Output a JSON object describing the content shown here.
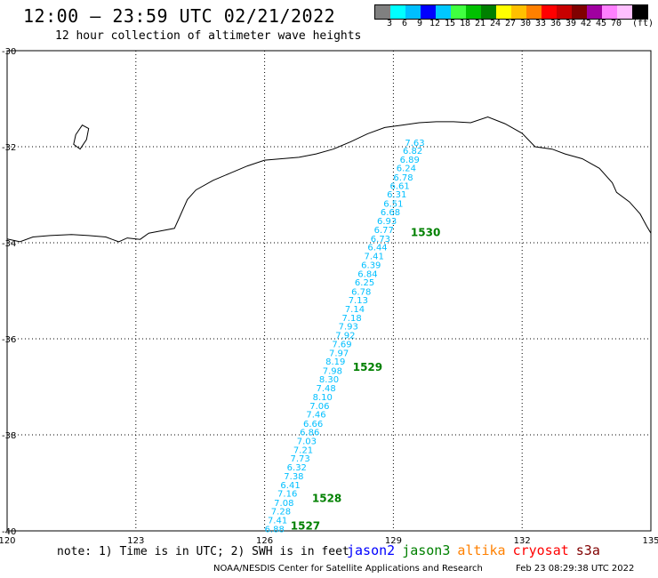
{
  "title": "12:00 – 23:59 UTC 02/21/2022",
  "subtitle": "12 hour collection of altimeter wave heights",
  "legend": {
    "colors": [
      "#808080",
      "#00ffff",
      "#00bfff",
      "#0000ff",
      "#00c8ff",
      "#40ff40",
      "#00c000",
      "#008000",
      "#ffff00",
      "#ffc000",
      "#ff8000",
      "#ff0000",
      "#c80000",
      "#800000",
      "#a000a0",
      "#ff80ff",
      "#ffc0ff",
      "#000000"
    ],
    "labels": [
      "3",
      "6",
      "9",
      "12",
      "15",
      "18",
      "21",
      "24",
      "27",
      "30",
      "33",
      "36",
      "39",
      "42",
      "45",
      "70"
    ],
    "unit": "(ft)"
  },
  "map": {
    "lon_ticks": [
      "120",
      "123",
      "126",
      "129",
      "132",
      "135"
    ],
    "lat_ticks": [
      "-30",
      "-32",
      "-34",
      "-36",
      "-38",
      "-40"
    ],
    "track_color": "#00bfff",
    "time_color": "#008000",
    "track_points": [
      {
        "lon": 129.5,
        "lat": -31.98,
        "v": "7.63"
      },
      {
        "lon": 129.45,
        "lat": -32.15,
        "v": "6.82"
      },
      {
        "lon": 129.38,
        "lat": -32.33,
        "v": "6.89"
      },
      {
        "lon": 129.3,
        "lat": -32.51,
        "v": "6.24"
      },
      {
        "lon": 129.23,
        "lat": -32.7,
        "v": "6.78"
      },
      {
        "lon": 129.15,
        "lat": -32.88,
        "v": "6.61"
      },
      {
        "lon": 129.08,
        "lat": -33.06,
        "v": "6.31"
      },
      {
        "lon": 129.0,
        "lat": -33.25,
        "v": "6.51"
      },
      {
        "lon": 128.93,
        "lat": -33.43,
        "v": "6.68"
      },
      {
        "lon": 128.85,
        "lat": -33.61,
        "v": "6.93"
      },
      {
        "lon": 128.78,
        "lat": -33.8,
        "v": "6.77"
      },
      {
        "lon": 128.7,
        "lat": -33.98,
        "v": "6.73"
      },
      {
        "lon": 128.63,
        "lat": -34.16,
        "v": "6.44"
      },
      {
        "lon": 128.55,
        "lat": -34.34,
        "v": "7.41"
      },
      {
        "lon": 128.48,
        "lat": -34.53,
        "v": "6.39"
      },
      {
        "lon": 128.4,
        "lat": -34.71,
        "v": "6.84"
      },
      {
        "lon": 128.33,
        "lat": -34.89,
        "v": "6.25"
      },
      {
        "lon": 128.25,
        "lat": -35.08,
        "v": "6.78"
      },
      {
        "lon": 128.18,
        "lat": -35.26,
        "v": "7.13"
      },
      {
        "lon": 128.1,
        "lat": -35.44,
        "v": "7.14"
      },
      {
        "lon": 128.03,
        "lat": -35.63,
        "v": "7.18"
      },
      {
        "lon": 127.95,
        "lat": -35.81,
        "v": "7.93"
      },
      {
        "lon": 127.88,
        "lat": -35.99,
        "v": "7.92"
      },
      {
        "lon": 127.8,
        "lat": -36.18,
        "v": "7.69"
      },
      {
        "lon": 127.73,
        "lat": -36.36,
        "v": "7.97"
      },
      {
        "lon": 127.65,
        "lat": -36.54,
        "v": "8.19"
      },
      {
        "lon": 127.58,
        "lat": -36.73,
        "v": "7.98"
      },
      {
        "lon": 127.5,
        "lat": -36.91,
        "v": "8.30"
      },
      {
        "lon": 127.43,
        "lat": -37.09,
        "v": "7.48"
      },
      {
        "lon": 127.35,
        "lat": -37.28,
        "v": "8.10"
      },
      {
        "lon": 127.28,
        "lat": -37.46,
        "v": "7.06"
      },
      {
        "lon": 127.2,
        "lat": -37.64,
        "v": "7.46"
      },
      {
        "lon": 127.13,
        "lat": -37.83,
        "v": "6.66"
      },
      {
        "lon": 127.05,
        "lat": -38.01,
        "v": "6.86"
      },
      {
        "lon": 126.98,
        "lat": -38.19,
        "v": "7.03"
      },
      {
        "lon": 126.9,
        "lat": -38.38,
        "v": "7.21"
      },
      {
        "lon": 126.83,
        "lat": -38.56,
        "v": "7.73"
      },
      {
        "lon": 126.75,
        "lat": -38.74,
        "v": "6.32"
      },
      {
        "lon": 126.68,
        "lat": -38.93,
        "v": "7.38"
      },
      {
        "lon": 126.6,
        "lat": -39.11,
        "v": "6.41"
      },
      {
        "lon": 126.53,
        "lat": -39.29,
        "v": "7.16"
      },
      {
        "lon": 126.45,
        "lat": -39.48,
        "v": "7.08"
      },
      {
        "lon": 126.38,
        "lat": -39.66,
        "v": "7.28"
      },
      {
        "lon": 126.3,
        "lat": -39.84,
        "v": "7.41"
      },
      {
        "lon": 126.23,
        "lat": -40.03,
        "v": "6.88"
      }
    ],
    "time_labels": [
      {
        "lon": 129.75,
        "lat": -33.86,
        "t": "1530"
      },
      {
        "lon": 128.4,
        "lat": -36.67,
        "t": "1529"
      },
      {
        "lon": 127.45,
        "lat": -39.4,
        "t": "1528"
      },
      {
        "lon": 126.95,
        "lat": -39.97,
        "t": "1527"
      }
    ],
    "coastline": [
      [
        120,
        -33.92
      ],
      [
        120.3,
        -33.98
      ],
      [
        120.6,
        -33.88
      ],
      [
        121.0,
        -33.85
      ],
      [
        121.5,
        -33.83
      ],
      [
        121.9,
        -33.85
      ],
      [
        122.3,
        -33.88
      ],
      [
        122.6,
        -33.98
      ],
      [
        122.8,
        -33.9
      ],
      [
        123.1,
        -33.93
      ],
      [
        123.3,
        -33.8
      ],
      [
        123.6,
        -33.75
      ],
      [
        123.9,
        -33.7
      ],
      [
        124.0,
        -33.5
      ],
      [
        124.2,
        -33.1
      ],
      [
        124.4,
        -32.9
      ],
      [
        124.8,
        -32.7
      ],
      [
        125.2,
        -32.55
      ],
      [
        125.6,
        -32.4
      ],
      [
        126.0,
        -32.28
      ],
      [
        126.4,
        -32.25
      ],
      [
        126.8,
        -32.22
      ],
      [
        127.2,
        -32.15
      ],
      [
        127.6,
        -32.05
      ],
      [
        128.0,
        -31.9
      ],
      [
        128.4,
        -31.73
      ],
      [
        128.8,
        -31.6
      ],
      [
        129.2,
        -31.55
      ],
      [
        129.6,
        -31.5
      ],
      [
        130.0,
        -31.48
      ],
      [
        130.4,
        -31.48
      ],
      [
        130.8,
        -31.5
      ],
      [
        131.2,
        -31.38
      ],
      [
        131.6,
        -31.52
      ],
      [
        132.0,
        -31.72
      ],
      [
        132.3,
        -32.0
      ],
      [
        132.7,
        -32.05
      ],
      [
        133.0,
        -32.15
      ],
      [
        133.4,
        -32.25
      ],
      [
        133.8,
        -32.45
      ],
      [
        134.1,
        -32.75
      ],
      [
        134.2,
        -32.95
      ],
      [
        134.5,
        -33.15
      ],
      [
        134.75,
        -33.4
      ],
      [
        134.9,
        -33.65
      ],
      [
        135,
        -33.8
      ]
    ],
    "island": [
      [
        121.6,
        -31.75
      ],
      [
        121.75,
        -31.55
      ],
      [
        121.9,
        -31.62
      ],
      [
        121.85,
        -31.85
      ],
      [
        121.7,
        -32.05
      ],
      [
        121.55,
        -31.95
      ],
      [
        121.6,
        -31.75
      ]
    ]
  },
  "footer": {
    "note": "note: 1) Time is in UTC; 2) SWH is in feet",
    "satellites": [
      {
        "name": "jason2",
        "color": "#0000ff"
      },
      {
        "name": "jason3",
        "color": "#008000"
      },
      {
        "name": "altika",
        "color": "#ff8000"
      },
      {
        "name": "cryosat",
        "color": "#ff0000"
      },
      {
        "name": "s3a",
        "color": "#800000"
      }
    ],
    "credit": "NOAA/NESDIS Center for Satellite Applications and Research",
    "timestamp": "Feb 23 08:29:38 UTC 2022"
  }
}
